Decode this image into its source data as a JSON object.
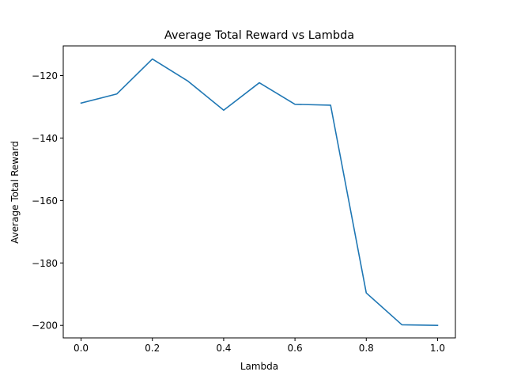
{
  "chart_data": {
    "type": "line",
    "title": "Average Total Reward vs Lambda",
    "xlabel": "Lambda",
    "ylabel": "Average Total Reward",
    "xlim": [
      -0.05,
      1.05
    ],
    "ylim": [
      -204,
      -110.5
    ],
    "xticks": [
      0.0,
      0.2,
      0.4,
      0.6,
      0.8,
      1.0
    ],
    "xtick_labels": [
      "0.0",
      "0.2",
      "0.4",
      "0.6",
      "0.8",
      "1.0"
    ],
    "yticks": [
      -120,
      -140,
      -160,
      -180,
      -200
    ],
    "ytick_labels": [
      "−120",
      "−140",
      "−160",
      "−180",
      "−200"
    ],
    "grid": false,
    "legend": "none",
    "line_color": "#1f77b4",
    "series": [
      {
        "x": [
          0.0,
          0.1,
          0.2,
          0.3,
          0.4,
          0.5,
          0.6,
          0.7,
          0.8,
          0.9,
          1.0
        ],
        "values": [
          -128.8,
          -125.9,
          -114.7,
          -121.8,
          -131.1,
          -122.3,
          -129.2,
          -129.5,
          -189.6,
          -199.8,
          -200.0
        ]
      }
    ]
  }
}
